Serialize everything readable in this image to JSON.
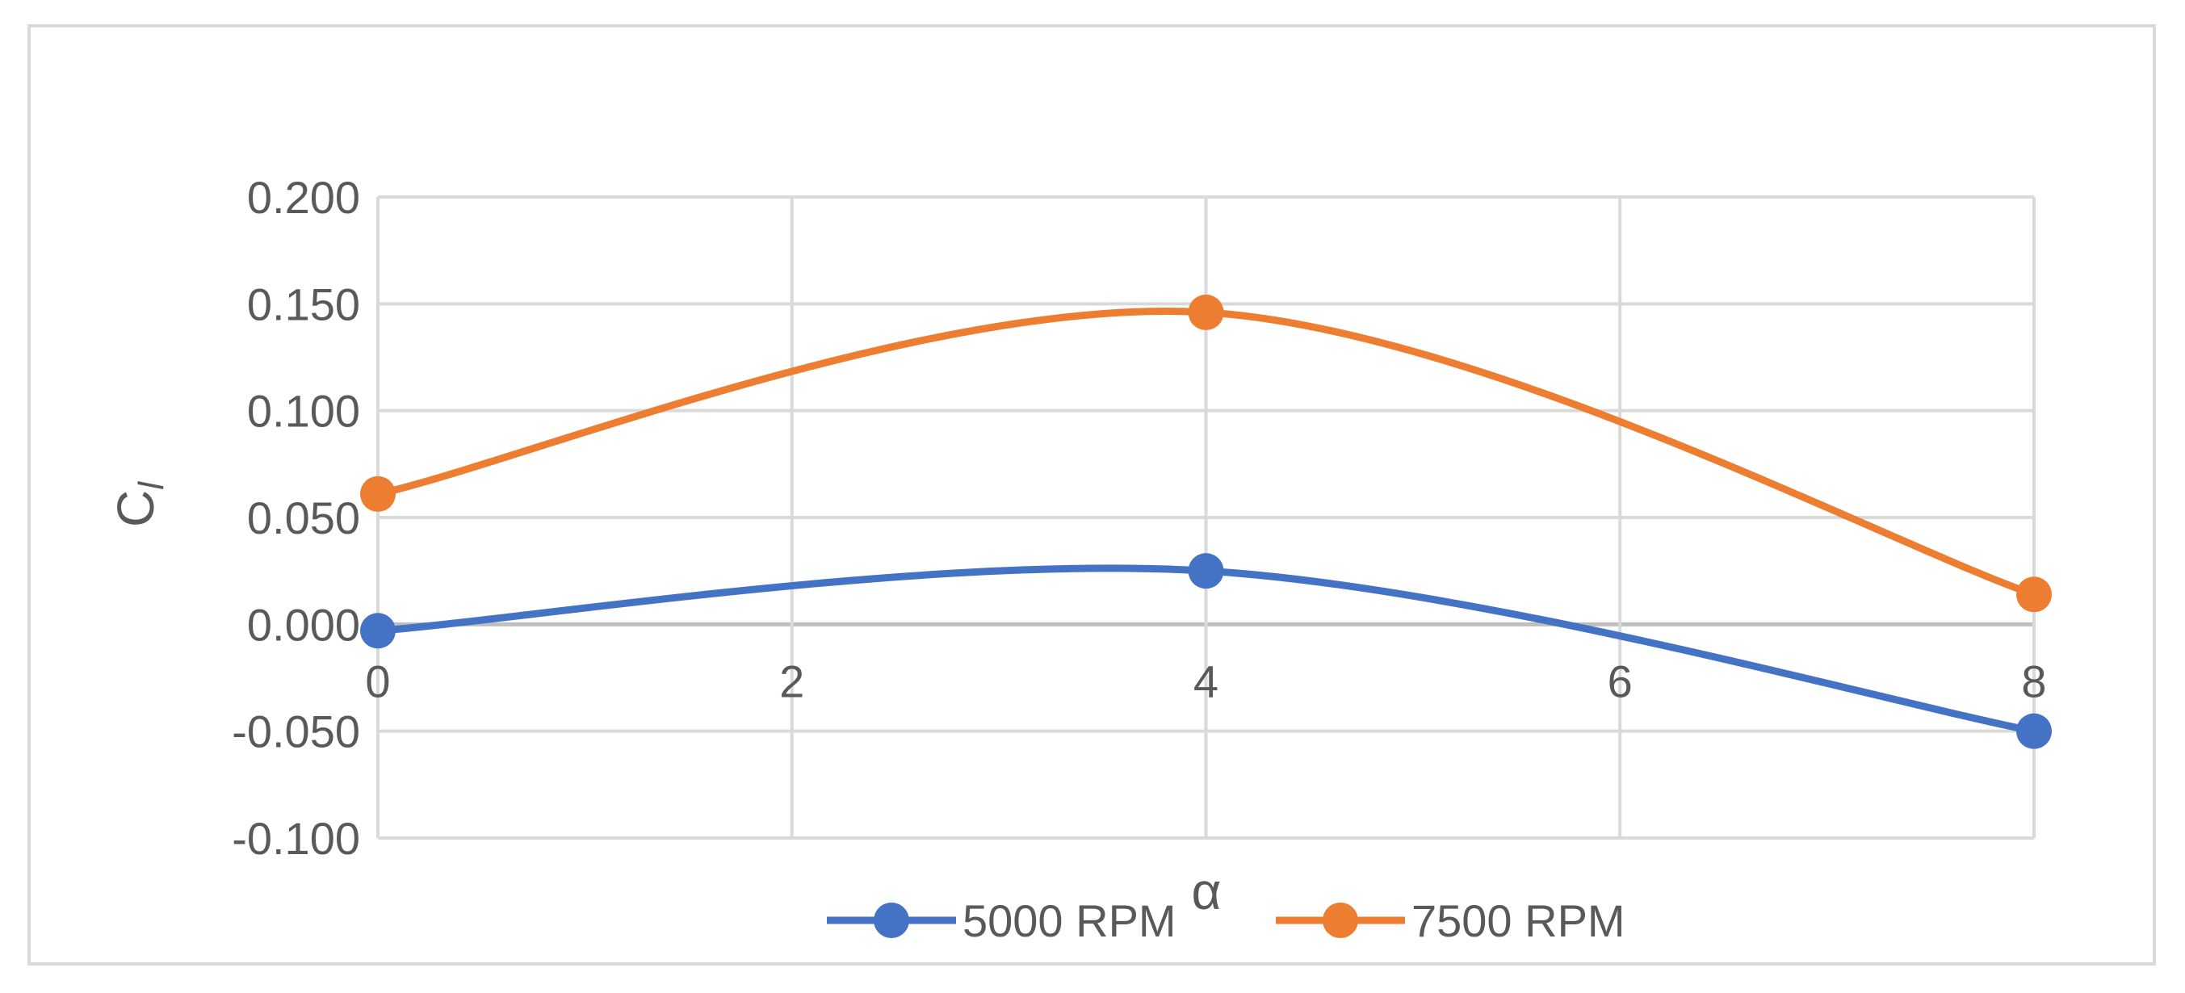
{
  "chart_data": {
    "type": "line",
    "smooth": true,
    "x": [
      0,
      4,
      8
    ],
    "series": [
      {
        "name": "5000 RPM",
        "values": [
          -0.003,
          0.025,
          -0.05
        ],
        "color": "#4472c4"
      },
      {
        "name": "7500 RPM",
        "values": [
          0.061,
          0.146,
          0.014
        ],
        "color": "#ed7d31"
      }
    ],
    "xlabel": "α",
    "ylabel_main": "C",
    "ylabel_sub": "l",
    "xlim": [
      0,
      8
    ],
    "ylim": [
      -0.1,
      0.2
    ],
    "x_ticks": [
      "0",
      "2",
      "4",
      "6",
      "8"
    ],
    "y_ticks": [
      "0.200",
      "0.150",
      "0.100",
      "0.050",
      "0.000",
      "-0.050",
      "-0.100"
    ],
    "grid": true,
    "legend_position": "bottom",
    "colors": {
      "grid": "#d9d9d9",
      "text": "#595959"
    }
  }
}
